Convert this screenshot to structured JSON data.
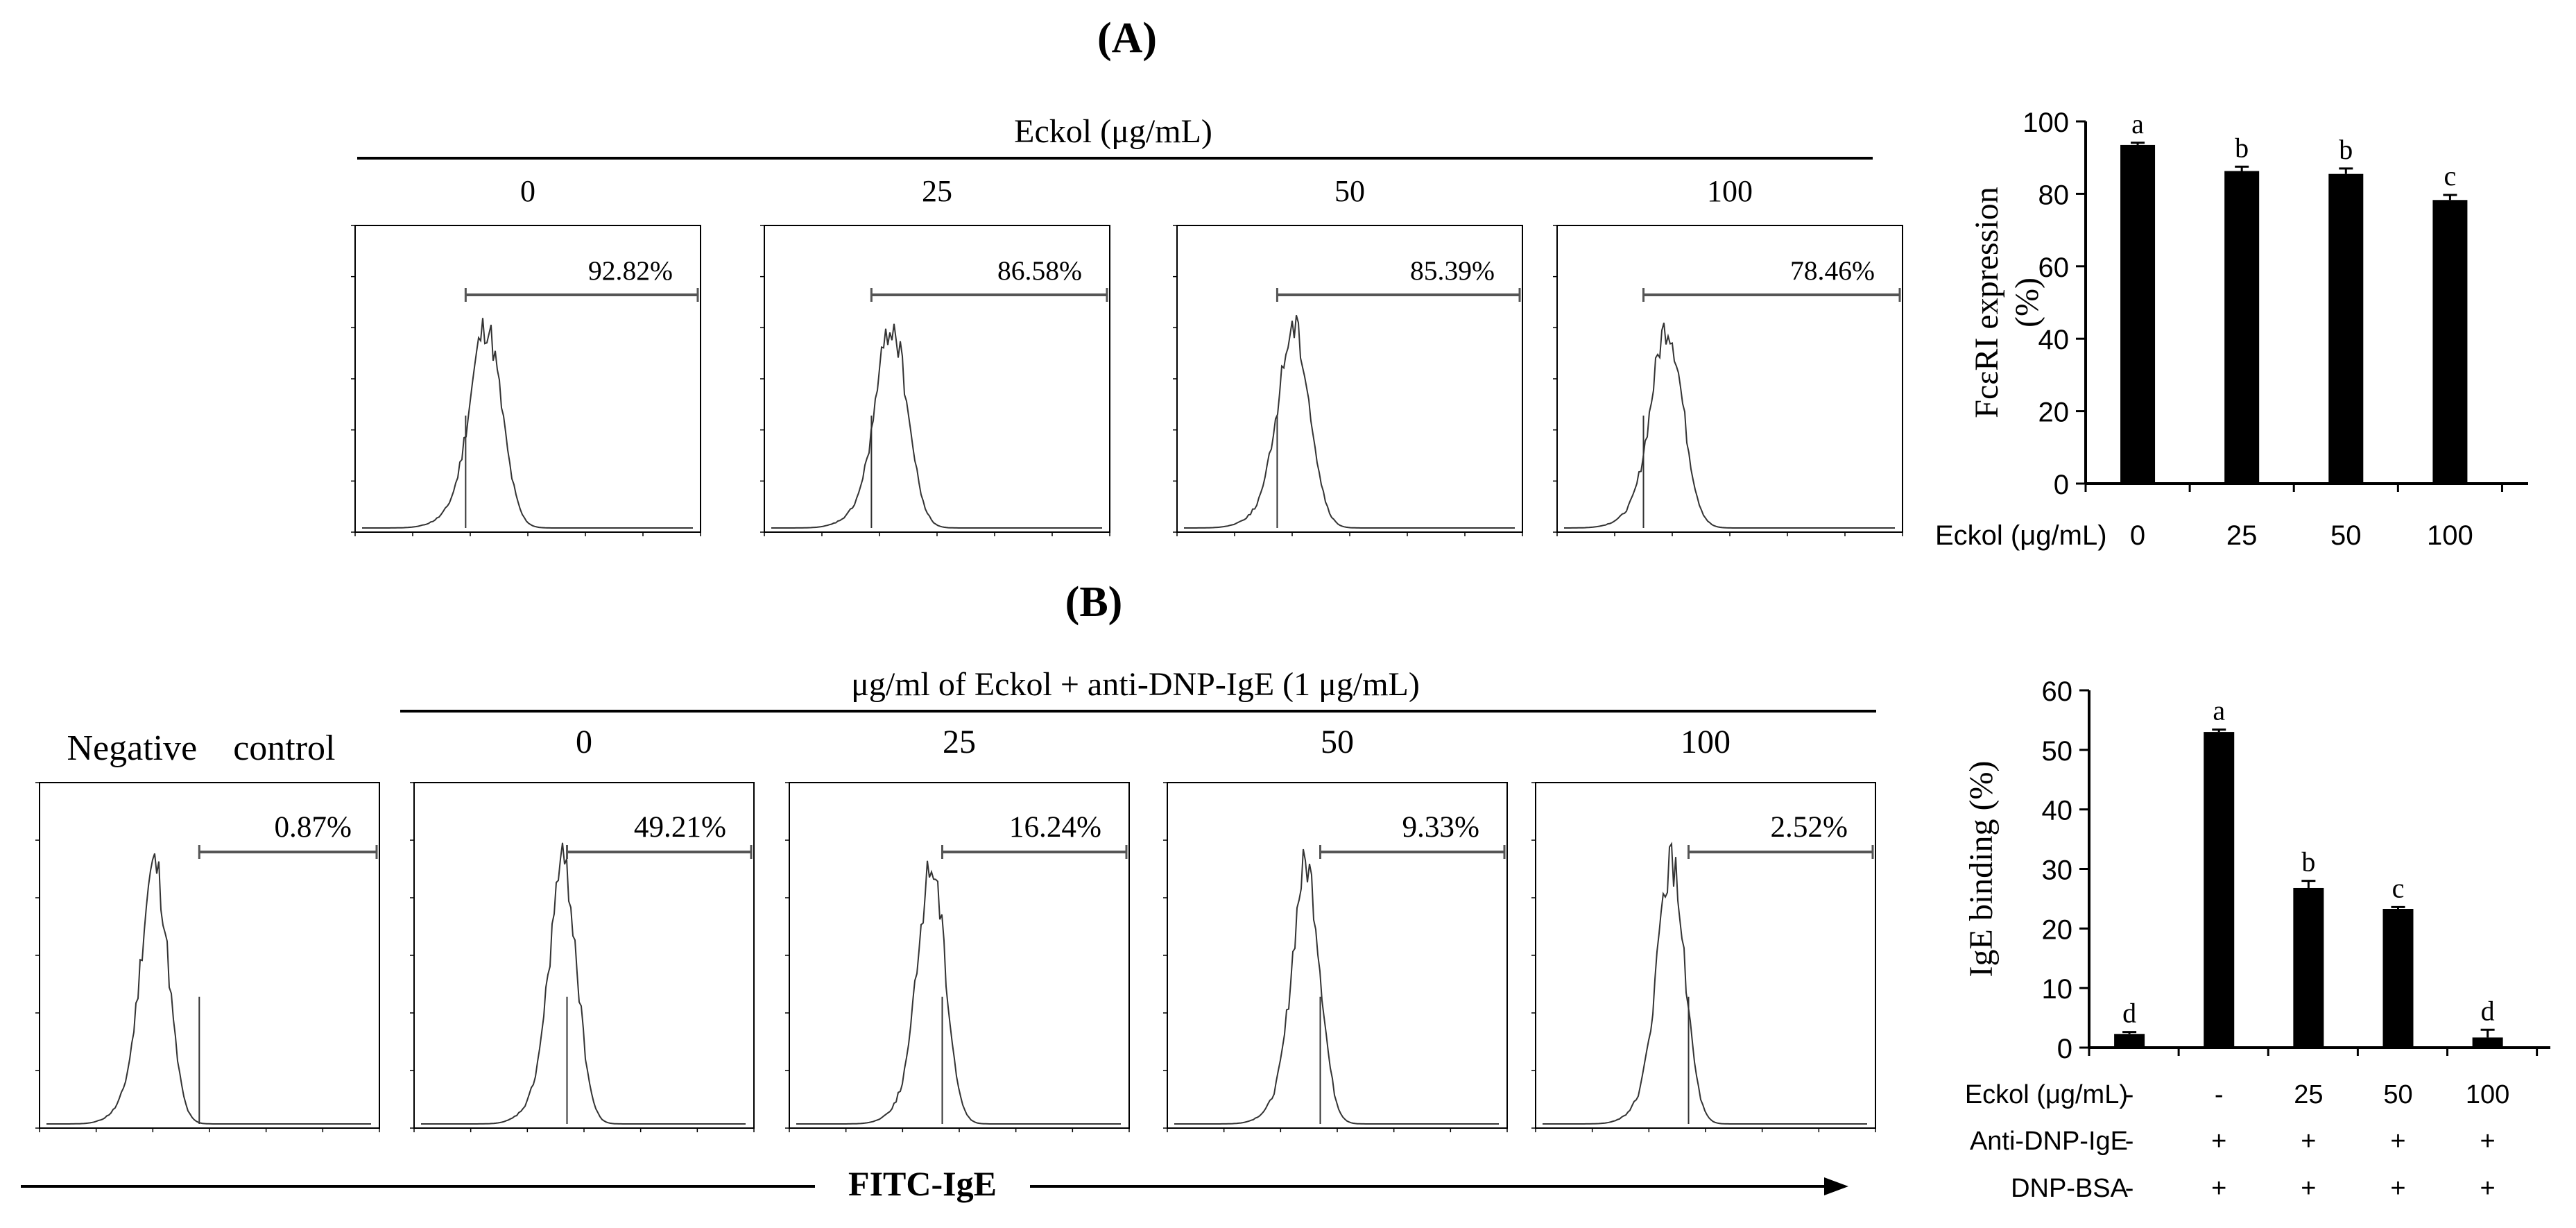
{
  "panel_a": {
    "label": "(A)",
    "header": "Eckol (μg/mL)",
    "histograms": [
      {
        "dose": "0",
        "percent": "92.82%"
      },
      {
        "dose": "25",
        "percent": "86.58%"
      },
      {
        "dose": "50",
        "percent": "85.39%"
      },
      {
        "dose": "100",
        "percent": "78.46%"
      }
    ]
  },
  "panel_b": {
    "label": "(B)",
    "header": "μg/ml of Eckol + anti-DNP-IgE (1 μg/mL)",
    "negative_control_label": "Negative    control",
    "histograms": [
      {
        "dose": "",
        "percent": "0.87%"
      },
      {
        "dose": "0",
        "percent": "49.21%"
      },
      {
        "dose": "25",
        "percent": "16.24%"
      },
      {
        "dose": "50",
        "percent": "9.33%"
      },
      {
        "dose": "100",
        "percent": "2.52%"
      }
    ],
    "x_arrow_label": "FITC-IgE"
  },
  "chart_data": [
    {
      "type": "bar",
      "title": "",
      "ylabel": "FcεRI expression (%)",
      "xlabel": "",
      "ylim": [
        0,
        100
      ],
      "yticks": [
        "0",
        "20",
        "40",
        "60",
        "80",
        "100"
      ],
      "row_label": "Eckol (μg/mL)",
      "categories": [
        "0",
        "25",
        "50",
        "100"
      ],
      "values": [
        93.5,
        86.3,
        85.5,
        78.3
      ],
      "errors": [
        0.6,
        1.2,
        1.5,
        1.4
      ],
      "letters": [
        "a",
        "b",
        "b",
        "c"
      ]
    },
    {
      "type": "bar",
      "title": "",
      "ylabel": "IgE binding (%)",
      "xlabel": "",
      "ylim": [
        0,
        60
      ],
      "yticks": [
        "0",
        "10",
        "20",
        "30",
        "40",
        "50",
        "60"
      ],
      "rows": [
        {
          "label": "Eckol (μg/mL)",
          "values": [
            "-",
            "-",
            "25",
            "50",
            "100"
          ]
        },
        {
          "label": "Anti-DNP-IgE",
          "values": [
            "-",
            "+",
            "+",
            "+",
            "+"
          ]
        },
        {
          "label": "DNP-BSA",
          "values": [
            "-",
            "+",
            "+",
            "+",
            "+"
          ]
        }
      ],
      "values": [
        2.3,
        53.0,
        26.8,
        23.3,
        1.7
      ],
      "errors": [
        0.3,
        0.4,
        1.2,
        0.3,
        1.3
      ],
      "letters": [
        "d",
        "a",
        "b",
        "c",
        "d"
      ]
    }
  ],
  "colors": {
    "bar": "#000000",
    "line": "#000000"
  }
}
